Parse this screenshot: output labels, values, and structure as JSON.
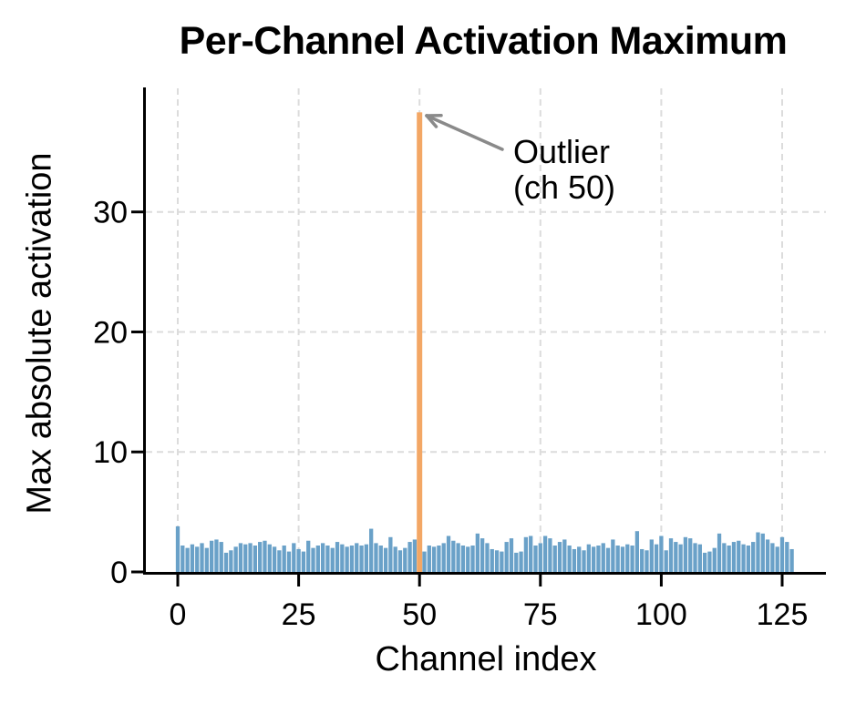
{
  "chart_data": {
    "type": "bar",
    "title": "Per-Channel Activation Maximum",
    "xlabel": "Channel index",
    "ylabel": "Max absolute activation",
    "x_ticks": [
      0,
      25,
      50,
      75,
      100,
      125
    ],
    "y_ticks": [
      0,
      10,
      20,
      30
    ],
    "xlim": [
      -6.5,
      134
    ],
    "ylim": [
      0,
      40.3
    ],
    "grid": true,
    "grid_style": "dashed",
    "n_channels": 128,
    "outlier_channel": 50,
    "outlier_value": 38.3,
    "annotation": {
      "line1": "Outlier",
      "line2": "(ch 50)",
      "target_channel": 50
    },
    "values": [
      3.8,
      2.2,
      2.0,
      2.3,
      2.1,
      2.4,
      2.0,
      2.6,
      2.7,
      2.5,
      1.6,
      1.8,
      2.1,
      2.4,
      2.3,
      2.4,
      2.2,
      2.5,
      2.6,
      2.3,
      2.1,
      1.8,
      2.2,
      1.7,
      2.4,
      1.9,
      1.7,
      2.6,
      2.0,
      2.2,
      2.4,
      2.2,
      2.0,
      2.5,
      2.3,
      2.1,
      2.2,
      2.4,
      2.2,
      2.3,
      3.6,
      2.4,
      2.2,
      2.0,
      2.9,
      2.1,
      1.8,
      2.0,
      2.5,
      2.7,
      38.3,
      1.7,
      2.2,
      2.1,
      2.2,
      2.4,
      3.0,
      2.6,
      2.4,
      2.2,
      2.1,
      2.2,
      3.2,
      2.8,
      2.4,
      1.9,
      1.8,
      1.7,
      2.5,
      2.8,
      1.6,
      1.7,
      2.9,
      3.0,
      2.2,
      2.4,
      3.0,
      2.8,
      2.2,
      2.5,
      2.7,
      2.2,
      1.9,
      2.1,
      1.8,
      2.3,
      2.1,
      2.2,
      2.4,
      2.0,
      2.7,
      2.2,
      2.1,
      2.3,
      2.2,
      3.4,
      1.9,
      1.8,
      2.7,
      2.3,
      3.0,
      1.8,
      2.8,
      2.5,
      2.3,
      2.9,
      2.8,
      2.4,
      2.3,
      1.6,
      1.7,
      2.0,
      3.2,
      2.4,
      2.2,
      2.5,
      2.6,
      2.3,
      2.2,
      2.5,
      3.3,
      3.2,
      2.7,
      2.4,
      2.1,
      2.9,
      2.5,
      1.9
    ],
    "colors": {
      "bar": "#6aa1c8",
      "outlier_bar": "#f3a765",
      "grid": "#dcdcdc",
      "axis": "#000000",
      "arrow": "#8a8a8a"
    }
  }
}
